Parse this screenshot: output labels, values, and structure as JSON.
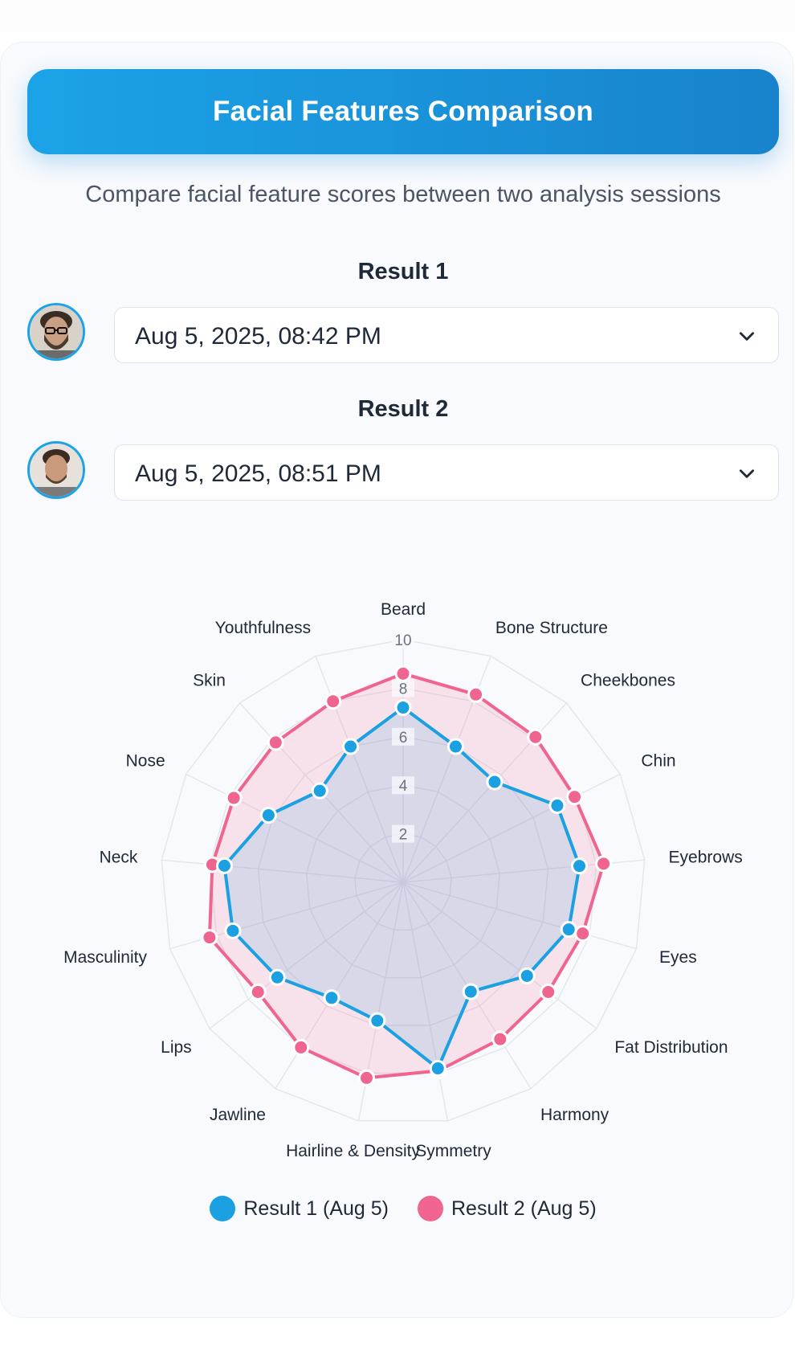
{
  "header": {
    "title": "Facial Features Comparison"
  },
  "subtitle": "Compare facial feature scores between two analysis sessions",
  "result1": {
    "label": "Result 1",
    "selected": "Aug 5, 2025, 08:42 PM",
    "color": "#1ba1e2"
  },
  "result2": {
    "label": "Result 2",
    "selected": "Aug 5, 2025, 08:51 PM",
    "color": "#f06590"
  },
  "icons": {
    "chevron": "chevron-down-icon",
    "avatar": "avatar"
  },
  "chart_data": {
    "type": "radar",
    "categories": [
      "Beard",
      "Bone Structure",
      "Cheekbones",
      "Chin",
      "Eyebrows",
      "Eyes",
      "Fat Distribution",
      "Harmony",
      "Symmetry",
      "Hairline & Density",
      "Jawline",
      "Lips",
      "Masculinity",
      "Neck",
      "Nose",
      "Skin",
      "Youthfulness"
    ],
    "r_range": [
      0,
      10
    ],
    "ticks": [
      "2",
      "4",
      "6",
      "8",
      "10"
    ],
    "grid": true,
    "legend_position": "bottom",
    "series": [
      {
        "name": "Result 1 (Aug 5)",
        "color": "#1ba1e2",
        "values": [
          7.2,
          6.0,
          5.6,
          7.1,
          7.3,
          7.1,
          6.4,
          5.3,
          7.8,
          5.8,
          5.6,
          6.5,
          7.3,
          7.4,
          6.2,
          5.1,
          6.0
        ]
      },
      {
        "name": "Result 2 (Aug 5)",
        "color": "#f06590",
        "values": [
          8.6,
          8.3,
          8.1,
          7.9,
          8.3,
          7.7,
          7.5,
          7.6,
          7.9,
          8.2,
          8.0,
          7.5,
          8.3,
          7.9,
          7.8,
          7.8,
          8.0
        ]
      }
    ]
  },
  "legend": {
    "items": [
      {
        "label": "Result 1 (Aug 5)",
        "color": "#1ba1e2"
      },
      {
        "label": "Result 2 (Aug 5)",
        "color": "#f06590"
      }
    ]
  }
}
